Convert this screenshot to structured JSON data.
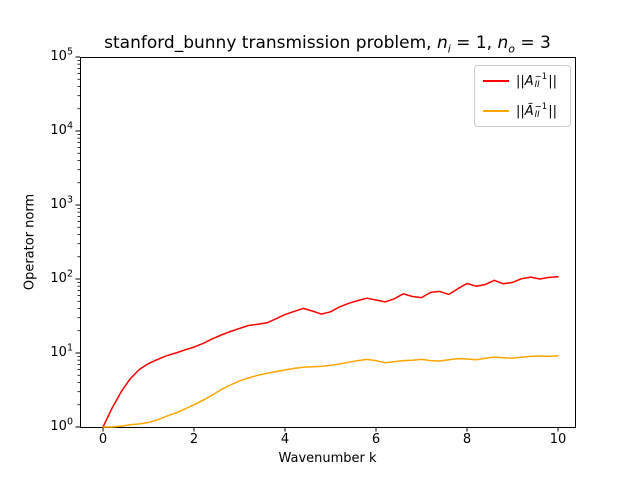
{
  "figure": {
    "title": {
      "pre": "stanford_bunny transmission problem, ",
      "var1": "n",
      "sub1": "i",
      "mid": " = 1, ",
      "var2": "n",
      "sub2": "o",
      "post": " = 3"
    },
    "xlabel": "Wavenumber k",
    "ylabel": "Operator norm",
    "x_ticks": [
      0,
      2,
      4,
      6,
      8,
      10
    ],
    "y_tick_base": "10",
    "y_tick_exponents": [
      0,
      1,
      2,
      3,
      4,
      5
    ],
    "spine_color": "#000000",
    "background_color": "#ffffff"
  },
  "legend": {
    "entries": [
      {
        "color": "#ff0000",
        "pre": "||",
        "sym": "A",
        "sup": "−1",
        "sub": "II",
        "post": "||"
      },
      {
        "color": "#ffa500",
        "pre": "||",
        "sym": "Ã",
        "sup": "−1",
        "sub": "II",
        "post": "||"
      }
    ]
  },
  "chart_data": {
    "type": "line",
    "title": "stanford_bunny transmission problem, n_i = 1, n_o = 3",
    "xlabel": "Wavenumber k",
    "ylabel": "Operator norm",
    "yscale": "log",
    "xlim": [
      -0.5,
      10.4
    ],
    "ylim": [
      1,
      100000
    ],
    "grid": false,
    "legend_position": "upper right",
    "x": [
      0,
      0.2,
      0.4,
      0.6,
      0.8,
      1,
      1.2,
      1.4,
      1.6,
      1.8,
      2,
      2.2,
      2.4,
      2.6,
      2.8,
      3,
      3.2,
      3.4,
      3.6,
      3.8,
      4,
      4.2,
      4.4,
      4.6,
      4.8,
      5,
      5.2,
      5.4,
      5.6,
      5.8,
      6,
      6.2,
      6.4,
      6.6,
      6.8,
      7,
      7.2,
      7.4,
      7.6,
      7.8,
      8,
      8.2,
      8.4,
      8.6,
      8.8,
      9,
      9.2,
      9.4,
      9.6,
      9.8,
      10
    ],
    "series": [
      {
        "name": "||A_II^-1||",
        "color": "#ff0000",
        "values": [
          1.0,
          1.8,
          3.0,
          4.5,
          6.0,
          7.2,
          8.2,
          9.2,
          10.0,
          11.0,
          12.0,
          13.5,
          15.5,
          17.5,
          19.5,
          21.5,
          23.5,
          24.5,
          25.5,
          29,
          33,
          36.5,
          40,
          37,
          33.5,
          36,
          42,
          47,
          51,
          55,
          52,
          49,
          54,
          63,
          58,
          56,
          66,
          68,
          62,
          74,
          87,
          80,
          84,
          96,
          86,
          90,
          101,
          106,
          100,
          105,
          107
        ]
      },
      {
        "name": "||Ã_II^-1||",
        "color": "#ffa500",
        "values": [
          1.0,
          1.0,
          1.03,
          1.07,
          1.1,
          1.15,
          1.25,
          1.4,
          1.55,
          1.75,
          2.0,
          2.3,
          2.7,
          3.2,
          3.7,
          4.2,
          4.6,
          5.0,
          5.3,
          5.6,
          5.9,
          6.2,
          6.4,
          6.5,
          6.6,
          6.8,
          7.1,
          7.5,
          7.9,
          8.2,
          7.9,
          7.4,
          7.6,
          7.9,
          8.0,
          8.2,
          7.9,
          7.8,
          8.1,
          8.4,
          8.3,
          8.1,
          8.5,
          8.8,
          8.6,
          8.5,
          8.8,
          9.0,
          9.1,
          9.0,
          9.2
        ]
      }
    ]
  }
}
